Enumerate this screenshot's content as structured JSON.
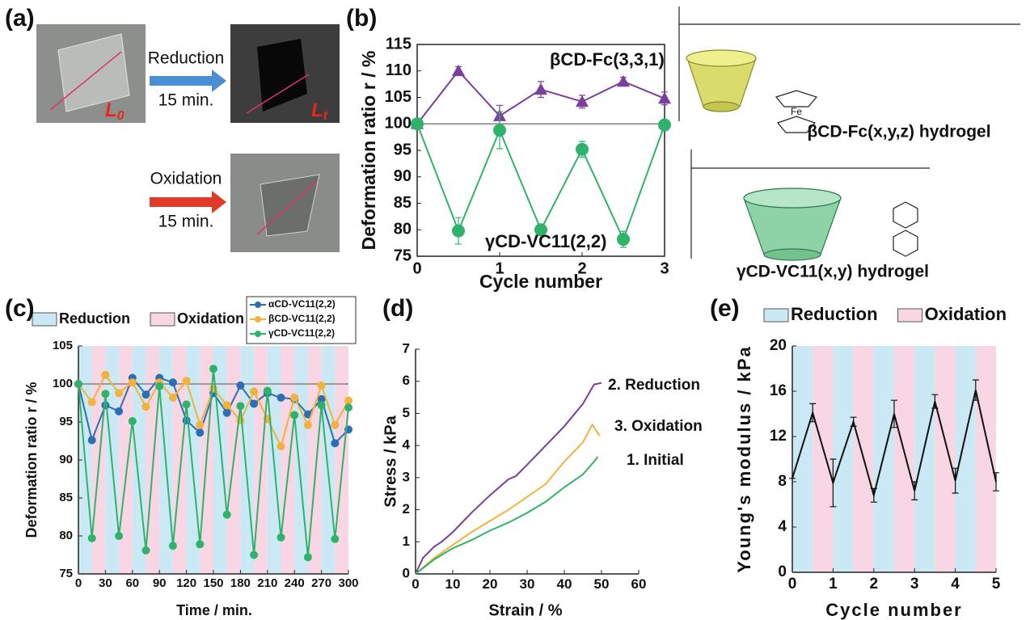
{
  "panel_a": {
    "label": "(a)",
    "steps": [
      {
        "text": "Reduction",
        "time": "15 min."
      },
      {
        "text": "Oxidation",
        "time": "15 min."
      }
    ],
    "lengths": [
      {
        "symbol": "L",
        "subscript": "0"
      },
      {
        "symbol": "L",
        "subscript": "t"
      }
    ]
  },
  "structures": [
    {
      "caption": "βCD-Fc(x,y,z) hydrogel",
      "metal": "Fe"
    },
    {
      "caption": "γCD-VC11(x,y) hydrogel"
    }
  ],
  "chart_data": [
    {
      "type": "line",
      "panel": "(b)",
      "xlabel": "Cycle number",
      "ylabel": "Deformation ratio r / %",
      "x": [
        0,
        0.5,
        1,
        1.5,
        2,
        2.5,
        3
      ],
      "series": [
        {
          "name": "βCD-Fc(3,3,1)",
          "color": "#7a3e9d",
          "marker": "triangle",
          "values": [
            100,
            110,
            101.5,
            106.5,
            104.2,
            108,
            104.8
          ],
          "errors": [
            0,
            0.8,
            2,
            1.5,
            1.2,
            0.8,
            1.2
          ]
        },
        {
          "name": "γCD-VC11(2,2)",
          "color": "#2fb36a",
          "marker": "circle",
          "values": [
            100,
            79.8,
            98.8,
            80,
            95.2,
            78.2,
            99.8
          ],
          "errors": [
            0,
            2.5,
            3.5,
            1,
            1.5,
            1.5,
            0
          ]
        }
      ],
      "reference_line": 100,
      "xlim": [
        0,
        3
      ],
      "xticks": [
        0,
        1,
        2,
        3
      ],
      "ylim": [
        75,
        115
      ],
      "yticks": [
        75,
        80,
        85,
        90,
        95,
        100,
        105,
        110,
        115
      ]
    },
    {
      "type": "line",
      "panel": "(c)",
      "xlabel": "Time / min.",
      "ylabel": "Deformation ratio r / %",
      "x": [
        0,
        15,
        30,
        45,
        60,
        75,
        90,
        105,
        120,
        135,
        150,
        165,
        180,
        195,
        210,
        225,
        240,
        255,
        270,
        285,
        300
      ],
      "series": [
        {
          "name": "αCD-VC11(2,2)",
          "color": "#2a6fb5",
          "marker": "circle",
          "values": [
            100,
            92.6,
            97.2,
            96.4,
            100.8,
            98.6,
            100.8,
            100.2,
            95.2,
            93.6,
            98.8,
            96.2,
            99.8,
            97.4,
            98.8,
            98.2,
            98.0,
            96.0,
            98.0,
            92.2,
            94.0
          ]
        },
        {
          "name": "βCD-VC11(2,2)",
          "color": "#f2b33d",
          "marker": "circle",
          "values": [
            100,
            97.6,
            101.2,
            98.8,
            100.2,
            97.0,
            100.2,
            98.2,
            100.4,
            94.6,
            99.4,
            97.2,
            95.2,
            99.0,
            95.4,
            91.8,
            98.2,
            94.6,
            99.8,
            94.6,
            97.8
          ]
        },
        {
          "name": "γCD-VC11(2,2)",
          "color": "#2fb36a",
          "marker": "circle",
          "values": [
            100,
            79.7,
            98.7,
            80.0,
            95.1,
            78.1,
            99.7,
            78.7,
            97.3,
            78.9,
            102.0,
            82.8,
            97.1,
            77.5,
            99.1,
            79.8,
            95.9,
            77.2,
            97.2,
            79.6,
            96.9
          ]
        }
      ],
      "shading": {
        "names": [
          "Reduction",
          "Oxidation"
        ],
        "colors": [
          "#cbe9f4",
          "#f8d6e3"
        ],
        "period": 15
      },
      "legend": "top-right",
      "reference_line": 100,
      "xlim": [
        0,
        300
      ],
      "xticks": [
        0,
        30,
        60,
        90,
        120,
        150,
        180,
        210,
        240,
        270,
        300
      ],
      "ylim": [
        75,
        105
      ],
      "yticks": [
        75,
        80,
        85,
        90,
        95,
        100,
        105
      ]
    },
    {
      "type": "line",
      "panel": "(d)",
      "xlabel": "Strain / %",
      "ylabel": "Stress / kPa",
      "series": [
        {
          "name": "2. Reduction",
          "color": "#7a3e9d",
          "x": [
            0,
            2,
            5,
            7,
            10,
            15,
            20,
            25,
            27,
            30,
            35,
            40,
            45,
            48,
            50
          ],
          "values": [
            0,
            0.5,
            0.85,
            1.0,
            1.3,
            1.9,
            2.45,
            2.95,
            3.05,
            3.4,
            4.0,
            4.6,
            5.3,
            5.9,
            5.95
          ]
        },
        {
          "name": "3. Oxidation",
          "color": "#f2b33d",
          "x": [
            0,
            5,
            10,
            15,
            20,
            25,
            30,
            35,
            40,
            45,
            47.5,
            49.5
          ],
          "values": [
            0,
            0.5,
            0.9,
            1.3,
            1.65,
            2.0,
            2.4,
            2.8,
            3.5,
            4.1,
            4.65,
            4.3
          ]
        },
        {
          "name": "1. Initial",
          "color": "#2fb36a",
          "x": [
            0,
            5,
            10,
            15,
            20,
            25,
            30,
            35,
            40,
            45,
            48,
            49
          ],
          "values": [
            0,
            0.45,
            0.8,
            1.05,
            1.35,
            1.6,
            1.9,
            2.25,
            2.7,
            3.1,
            3.5,
            3.65
          ]
        }
      ],
      "xlim": [
        0,
        60
      ],
      "xticks": [
        0,
        10,
        20,
        30,
        40,
        50,
        60
      ],
      "ylim": [
        0,
        7
      ],
      "yticks": [
        0,
        1,
        2,
        3,
        4,
        5,
        6,
        7
      ]
    },
    {
      "type": "line",
      "panel": "(e)",
      "xlabel": "Cycle number",
      "ylabel": "Young's modulus / kPa",
      "x": [
        0,
        0.5,
        1,
        1.5,
        2,
        2.5,
        3,
        3.5,
        4,
        4.5,
        5
      ],
      "series": [
        {
          "color": "#111111",
          "values": [
            8.3,
            14.1,
            7.9,
            13.3,
            6.8,
            14.0,
            7.2,
            15.1,
            8.1,
            16.1,
            8.0
          ],
          "errors": [
            0,
            0.8,
            2.1,
            0.4,
            0.6,
            1.2,
            0.8,
            0.6,
            1.1,
            0.9,
            0.8
          ]
        }
      ],
      "shading": {
        "names": [
          "Reduction",
          "Oxidation"
        ],
        "colors": [
          "#cbe9f4",
          "#f8d6e3"
        ],
        "period": 0.5
      },
      "xlim": [
        0,
        5
      ],
      "xticks": [
        0,
        1,
        2,
        3,
        4,
        5
      ],
      "ylim": [
        0,
        20
      ],
      "yticks": [
        0,
        4,
        8,
        12,
        16,
        20
      ]
    }
  ]
}
